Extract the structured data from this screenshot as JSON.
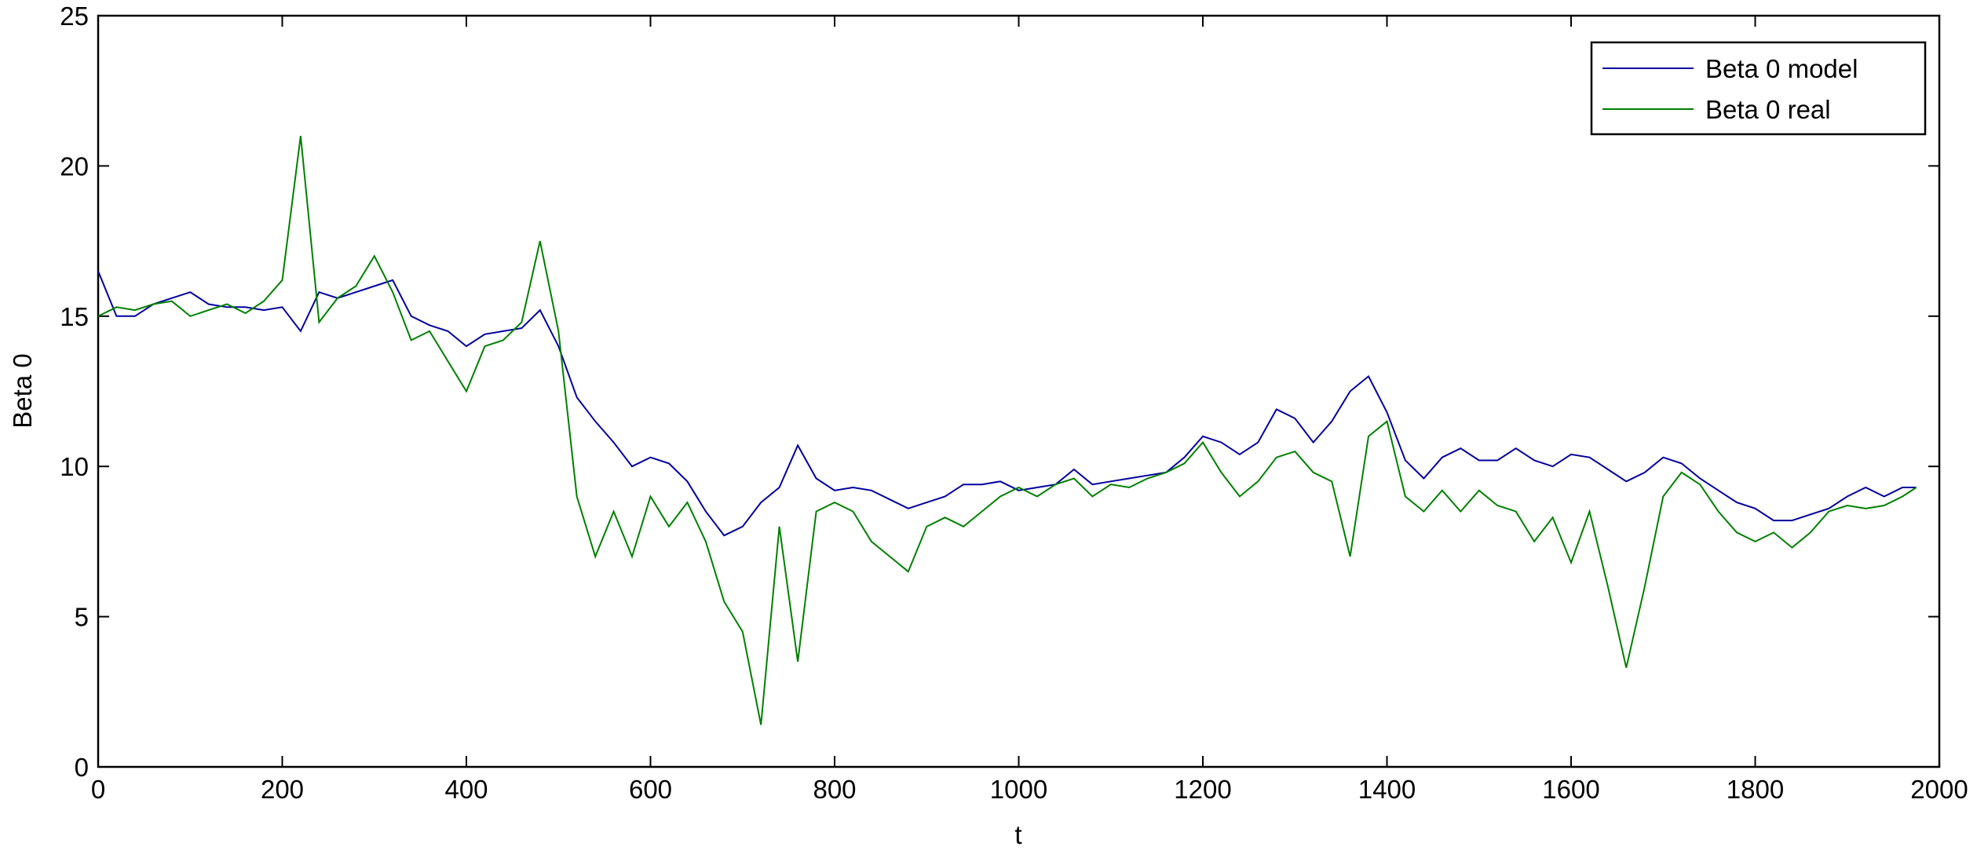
{
  "chart_data": {
    "type": "line",
    "xlabel": "t",
    "ylabel": "Beta 0",
    "xlim": [
      0,
      2000
    ],
    "ylim": [
      0,
      25
    ],
    "xticks": [
      0,
      200,
      400,
      600,
      800,
      1000,
      1200,
      1400,
      1600,
      1800,
      2000
    ],
    "yticks": [
      0,
      5,
      10,
      15,
      20,
      25
    ],
    "grid": false,
    "legend": "upper right",
    "x": [
      0,
      20,
      40,
      60,
      80,
      100,
      120,
      140,
      160,
      180,
      200,
      220,
      240,
      260,
      280,
      300,
      320,
      340,
      360,
      380,
      400,
      420,
      440,
      460,
      480,
      500,
      520,
      540,
      560,
      580,
      600,
      620,
      640,
      660,
      680,
      700,
      720,
      740,
      760,
      780,
      800,
      820,
      840,
      860,
      880,
      900,
      920,
      940,
      960,
      980,
      1000,
      1020,
      1040,
      1060,
      1080,
      1100,
      1120,
      1140,
      1160,
      1180,
      1200,
      1220,
      1240,
      1260,
      1280,
      1300,
      1320,
      1340,
      1360,
      1380,
      1400,
      1420,
      1440,
      1460,
      1480,
      1500,
      1520,
      1540,
      1560,
      1580,
      1600,
      1620,
      1640,
      1660,
      1680,
      1700,
      1720,
      1740,
      1760,
      1780,
      1800,
      1820,
      1840,
      1860,
      1880,
      1900,
      1920,
      1940,
      1960,
      1975
    ],
    "series": [
      {
        "name": "Beta 0 model",
        "color": "#0000a0",
        "values": [
          16.5,
          15.0,
          15.0,
          15.4,
          15.6,
          15.8,
          15.4,
          15.3,
          15.3,
          15.2,
          15.3,
          14.5,
          15.8,
          15.6,
          15.8,
          16.0,
          16.2,
          15.0,
          14.7,
          14.5,
          14.0,
          14.4,
          14.5,
          14.6,
          15.2,
          14.0,
          12.3,
          11.5,
          10.8,
          10.0,
          10.3,
          10.1,
          9.5,
          8.5,
          7.7,
          8.0,
          8.8,
          9.3,
          10.7,
          9.6,
          9.2,
          9.3,
          9.2,
          8.9,
          8.6,
          8.8,
          9.0,
          9.4,
          9.4,
          9.5,
          9.2,
          9.3,
          9.4,
          9.9,
          9.4,
          9.5,
          9.6,
          9.7,
          9.8,
          10.3,
          11.0,
          10.8,
          10.4,
          10.8,
          11.9,
          11.6,
          10.8,
          11.5,
          12.5,
          13.0,
          11.8,
          10.2,
          9.6,
          10.3,
          10.6,
          10.2,
          10.2,
          10.6,
          10.2,
          10.0,
          10.4,
          10.3,
          9.9,
          9.5,
          9.8,
          10.3,
          10.1,
          9.6,
          9.2,
          8.8,
          8.6,
          8.2,
          8.2,
          8.4,
          8.6,
          9.0,
          9.3,
          9.0,
          9.3,
          9.3
        ]
      },
      {
        "name": "Beta 0 real",
        "color": "#008000",
        "values": [
          15.0,
          15.3,
          15.2,
          15.4,
          15.5,
          15.0,
          15.2,
          15.4,
          15.1,
          15.5,
          16.2,
          21.0,
          14.8,
          15.6,
          16.0,
          17.0,
          15.8,
          14.2,
          14.5,
          13.5,
          12.5,
          14.0,
          14.2,
          14.8,
          17.5,
          14.5,
          9.0,
          7.0,
          8.5,
          7.0,
          9.0,
          8.0,
          8.8,
          7.5,
          5.5,
          4.5,
          1.4,
          8.0,
          3.5,
          8.5,
          8.8,
          8.5,
          7.5,
          7.0,
          6.5,
          8.0,
          8.3,
          8.0,
          8.5,
          9.0,
          9.3,
          9.0,
          9.4,
          9.6,
          9.0,
          9.4,
          9.3,
          9.6,
          9.8,
          10.1,
          10.8,
          9.8,
          9.0,
          9.5,
          10.3,
          10.5,
          9.8,
          9.5,
          7.0,
          11.0,
          11.5,
          9.0,
          8.5,
          9.2,
          8.5,
          9.2,
          8.7,
          8.5,
          7.5,
          8.3,
          6.8,
          8.5,
          6.0,
          3.3,
          6.0,
          9.0,
          9.8,
          9.4,
          8.5,
          7.8,
          7.5,
          7.8,
          7.3,
          7.8,
          8.5,
          8.7,
          8.6,
          8.7,
          9.0,
          9.3
        ]
      }
    ]
  }
}
